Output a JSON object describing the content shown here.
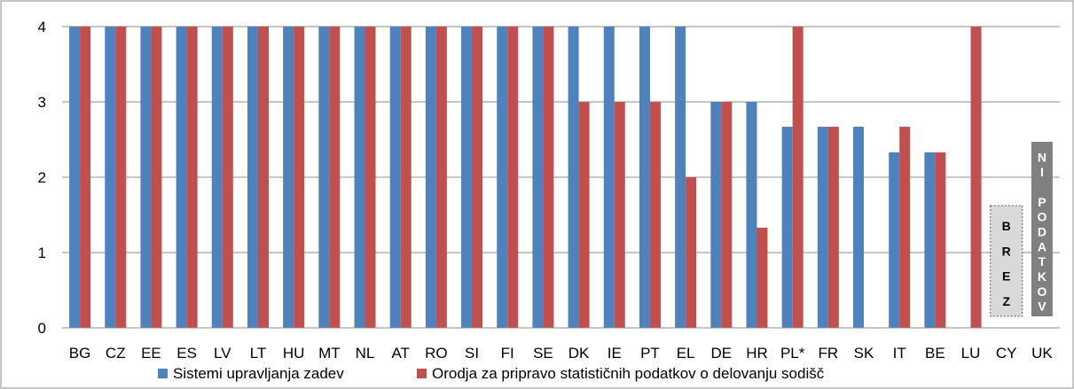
{
  "chart_data": {
    "type": "bar",
    "categories": [
      "BG",
      "CZ",
      "EE",
      "ES",
      "LV",
      "LT",
      "HU",
      "MT",
      "NL",
      "AT",
      "RO",
      "SI",
      "FI",
      "SE",
      "DK",
      "IE",
      "PT",
      "EL",
      "DE",
      "HR",
      "PL*",
      "FR",
      "SK",
      "IT",
      "BE",
      "LU",
      "CY",
      "UK"
    ],
    "series": [
      {
        "name": "Sistemi upravljanja zadev",
        "color": "#4f81bd",
        "values": [
          4,
          4,
          4,
          4,
          4,
          4,
          4,
          4,
          4,
          4,
          4,
          4,
          4,
          4,
          4,
          4,
          4,
          4,
          3,
          3,
          2.67,
          2.67,
          2.67,
          2.33,
          2.33,
          null,
          null,
          null
        ]
      },
      {
        "name": "Orodja za pripravo statističnih podatkov o delovanju sodišč",
        "color": "#c0504d",
        "values": [
          4,
          4,
          4,
          4,
          4,
          4,
          4,
          4,
          4,
          4,
          4,
          4,
          4,
          4,
          3,
          3,
          3,
          2,
          3,
          1.33,
          4,
          2.67,
          null,
          2.67,
          2.33,
          4,
          null,
          null
        ]
      }
    ],
    "ylim": [
      0,
      4
    ],
    "yticks": [
      "0",
      "1",
      "2",
      "3",
      "4"
    ],
    "grid": true,
    "legend_position": "bottom",
    "annotations": [
      {
        "category": "CY",
        "text": "BREZ"
      },
      {
        "category": "UK",
        "text": "NI PODATKOV"
      }
    ]
  }
}
